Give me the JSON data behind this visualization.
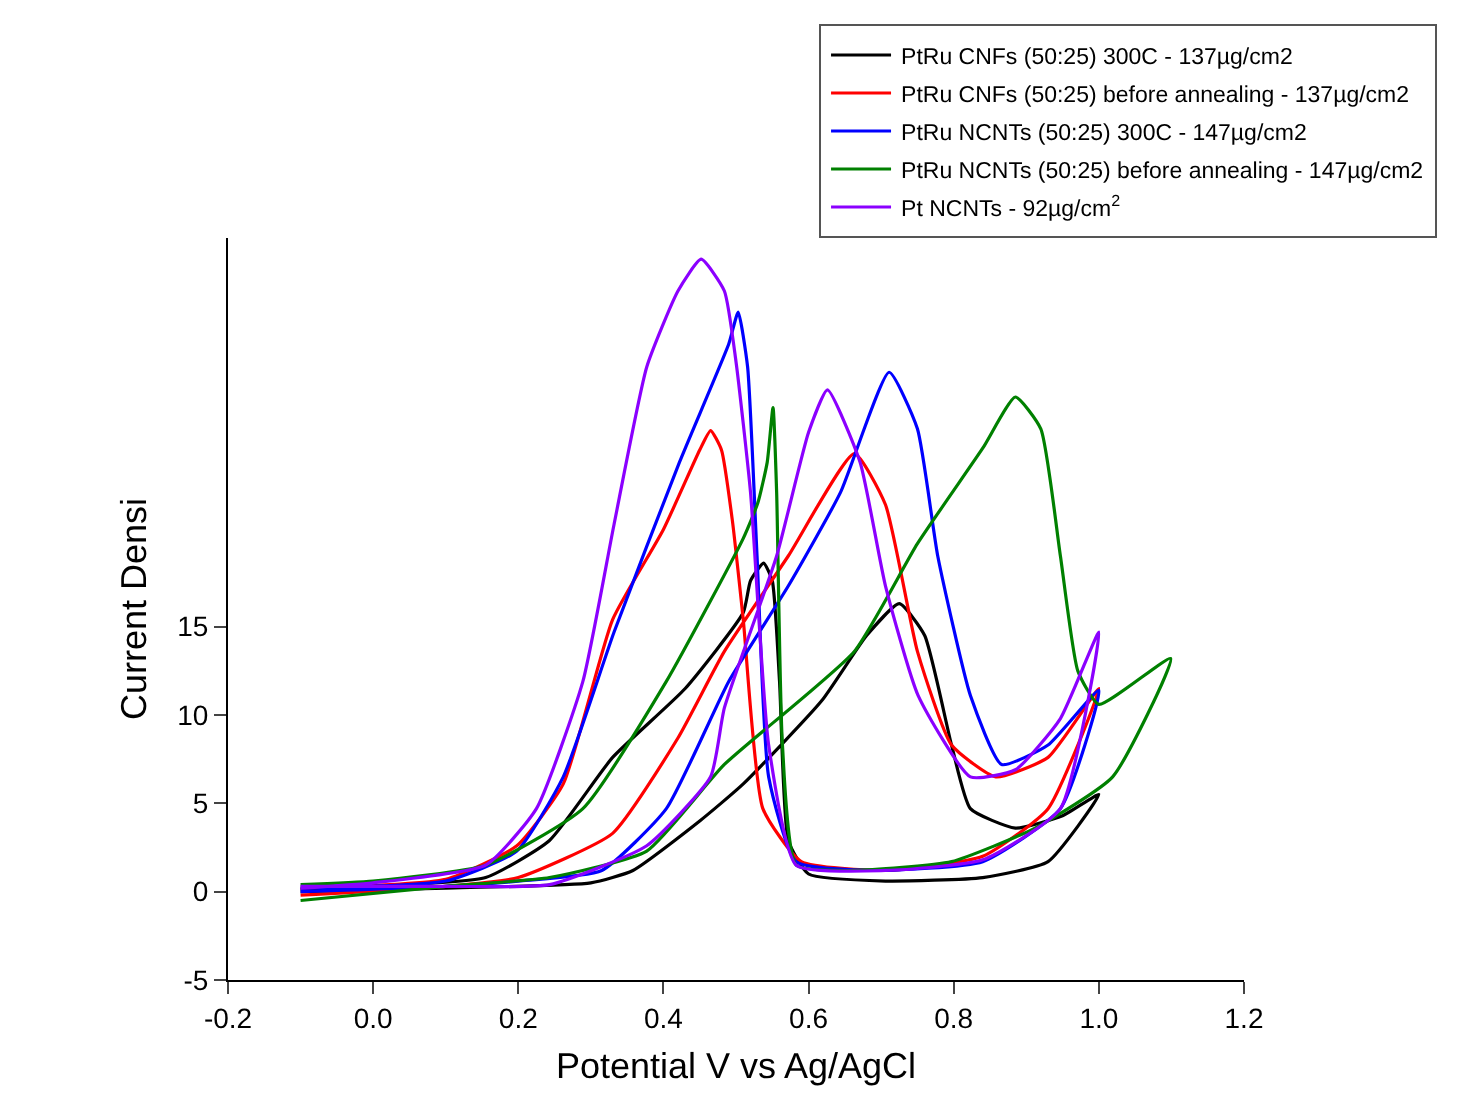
{
  "chart_data": {
    "type": "line",
    "xlabel": "Potential V vs Ag/AgCl",
    "ylabel": "Current Densi",
    "xlim": [
      -0.2,
      1.2
    ],
    "xticks": [
      -0.2,
      {
        "value": 0,
        "label": "0.0"
      },
      0.2,
      0.4,
      0.6,
      0.8,
      {
        "value": 1,
        "label": "1.0"
      },
      1.2
    ],
    "ylim": [
      -5,
      37
    ],
    "yticks": [
      -5,
      0,
      5,
      10,
      15
    ],
    "grid": false,
    "legend": "top right",
    "marker": "none",
    "line_style": "solid",
    "series": [
      {
        "name": "PtRu CNFs (50:25) 300C - 137µg/cm2",
        "color": "#000000",
        "x": [
          -0.1,
          0.1,
          0.3,
          0.358,
          0.45,
          0.51,
          0.618,
          0.68,
          0.725,
          0.76,
          0.797,
          0.823,
          0.885,
          0.95,
          1.0,
          0.93,
          0.84,
          0.706,
          0.6,
          0.572,
          0.56,
          0.55,
          0.538,
          0.52,
          0.51,
          0.43,
          0.33,
          0.243,
          0.155,
          0.0,
          -0.1
        ],
        "values": [
          0,
          0.2,
          0.5,
          1.2,
          4,
          6.1,
          10.8,
          14.5,
          16.3,
          14.5,
          8.3,
          4.7,
          3.6,
          4.3,
          5.5,
          1.7,
          0.8,
          0.6,
          1.0,
          2.9,
          11.9,
          17.6,
          18.6,
          17.6,
          15.8,
          11.5,
          7.6,
          2.9,
          0.8,
          0.3,
          0.1
        ]
      },
      {
        "name": "PtRu CNFs (50:25) before annealing - 137µg/cm2",
        "color": "#ff0000",
        "x": [
          -0.1,
          0.1,
          0.2,
          0.33,
          0.42,
          0.484,
          0.572,
          0.663,
          0.706,
          0.75,
          0.797,
          0.858,
          0.93,
          1.0,
          0.93,
          0.84,
          0.706,
          0.59,
          0.537,
          0.51,
          0.495,
          0.48,
          0.465,
          0.45,
          0.4,
          0.33,
          0.262,
          0.198,
          0.1,
          -0.1
        ],
        "values": [
          -0.2,
          0.3,
          0.8,
          3.3,
          8.7,
          13.6,
          19,
          24.8,
          21.9,
          13.6,
          8.3,
          6.5,
          7.6,
          11.5,
          4.7,
          2,
          1.2,
          1.7,
          4.7,
          15.4,
          21,
          25,
          26.1,
          25,
          20.5,
          15.4,
          6.1,
          2.6,
          0.7,
          0.2
        ]
      },
      {
        "name": "PtRu NCNTs (50:25) 300C - 147µg/cm2",
        "color": "#0000ff",
        "x": [
          -0.1,
          0.1,
          0.2,
          0.315,
          0.404,
          0.49,
          0.572,
          0.644,
          0.711,
          0.75,
          0.778,
          0.823,
          0.866,
          0.93,
          1.0,
          0.947,
          0.84,
          0.69,
          0.583,
          0.545,
          0.529,
          0.516,
          0.503,
          0.49,
          0.422,
          0.332,
          0.262,
          0.198,
          0.1,
          -0.1
        ],
        "values": [
          0,
          0.3,
          0.6,
          1.2,
          4.7,
          11.9,
          17.3,
          22.6,
          29.4,
          26.2,
          19,
          11.1,
          7.2,
          8.3,
          11.4,
          4.7,
          1.7,
          1.2,
          1.7,
          6.5,
          19,
          29.7,
          32.8,
          31,
          24.3,
          14.7,
          6.5,
          2.3,
          0.6,
          0.2
        ]
      },
      {
        "name": "PtRu NCNTs (50:25) before annealing - 147µg/cm2",
        "color": "#008000",
        "x": [
          -0.1,
          0.1,
          0.243,
          0.377,
          0.484,
          0.663,
          0.75,
          0.84,
          0.885,
          0.92,
          0.947,
          0.971,
          1.0,
          1.099,
          1.019,
          0.912,
          0.797,
          0.663,
          0.583,
          0.564,
          0.556,
          0.551,
          0.543,
          0.53,
          0.51,
          0.404,
          0.289,
          0.155,
          0,
          -0.1
        ],
        "values": [
          -0.5,
          0.3,
          0.8,
          2.3,
          7.2,
          13.6,
          19.7,
          25.1,
          28,
          26.2,
          19,
          12.5,
          10.6,
          13.2,
          6.5,
          3.6,
          1.7,
          1.2,
          1.5,
          8.3,
          22.6,
          27.4,
          24.3,
          22,
          20,
          11.9,
          4.7,
          1.5,
          0.6,
          0.4
        ]
      },
      {
        "name": "Pt NCNTs - 92µg/cm$^{2}$",
        "color": "#8b00ff",
        "x": [
          -0.1,
          0.1,
          0.243,
          0.377,
          0.465,
          0.484,
          0.556,
          0.6,
          0.626,
          0.671,
          0.706,
          0.751,
          0.823,
          0.885,
          0.947,
          1.0,
          0.947,
          0.84,
          0.706,
          0.583,
          0.545,
          0.52,
          0.5,
          0.484,
          0.452,
          0.42,
          0.377,
          0.332,
          0.289,
          0.225,
          0.155,
          0,
          -0.1
        ],
        "values": [
          0.3,
          0.3,
          0.4,
          2.6,
          6.5,
          10.4,
          19,
          26,
          28.4,
          24.3,
          17.3,
          11.1,
          6.5,
          6.9,
          9.8,
          14.7,
          4.7,
          1.8,
          1.2,
          1.5,
          8.3,
          22.6,
          30,
          34,
          35.8,
          34,
          29.7,
          20.8,
          11.9,
          4.7,
          1.5,
          0.5,
          0.2
        ]
      }
    ]
  }
}
